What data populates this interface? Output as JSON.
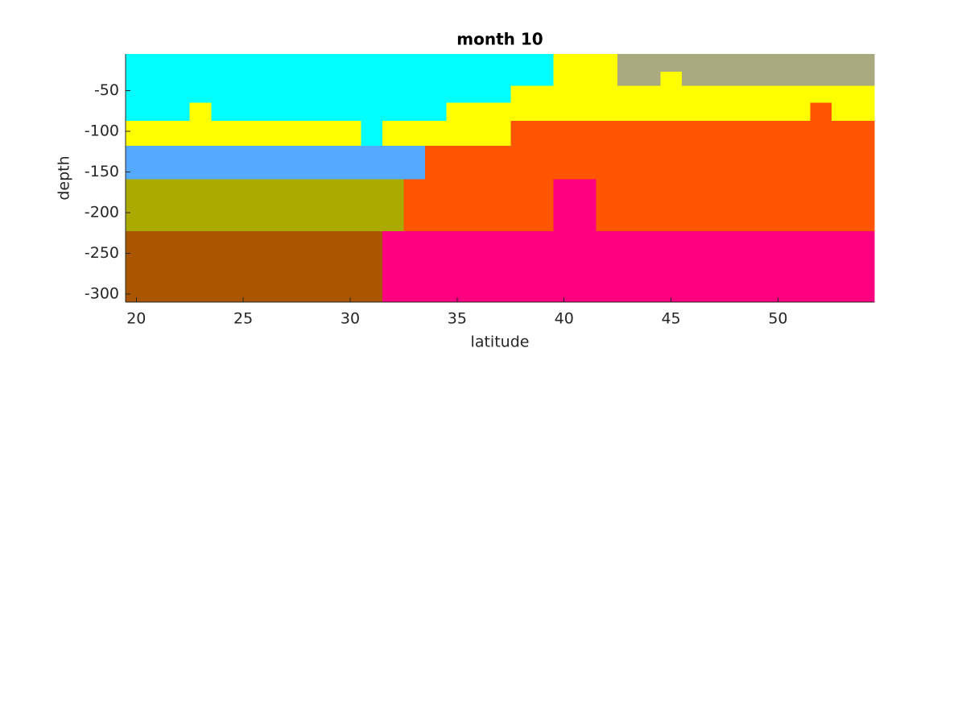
{
  "chart_data": {
    "type": "heatmap",
    "title": "month 10",
    "xlabel": "latitude",
    "ylabel": "depth",
    "x": [
      20,
      21,
      22,
      23,
      24,
      25,
      26,
      27,
      28,
      29,
      30,
      31,
      32,
      33,
      34,
      35,
      36,
      37,
      38,
      39,
      40,
      41,
      42,
      43,
      44,
      45,
      46,
      47,
      48,
      49,
      50,
      51,
      52,
      53,
      54
    ],
    "y_edges": [
      -5,
      -27,
      -44,
      -65,
      -87,
      -118,
      -159,
      -223,
      -310
    ],
    "colors": [
      "#00ffff",
      "#ffff00",
      "#aaaa80",
      "#ff5500",
      "#55aaff",
      "#aaaa00",
      "#aa5500",
      "#ff0080"
    ],
    "z": [
      [
        0,
        0,
        0,
        0,
        0,
        0,
        0,
        0,
        0,
        0,
        0,
        0,
        0,
        0,
        0,
        0,
        0,
        0,
        0,
        0,
        1,
        1,
        1,
        2,
        2,
        2,
        2,
        2,
        2,
        2,
        2,
        2,
        2,
        2,
        2
      ],
      [
        0,
        0,
        0,
        0,
        0,
        0,
        0,
        0,
        0,
        0,
        0,
        0,
        0,
        0,
        0,
        0,
        0,
        0,
        0,
        0,
        1,
        1,
        1,
        2,
        2,
        1,
        2,
        2,
        2,
        2,
        2,
        2,
        2,
        2,
        2
      ],
      [
        0,
        0,
        0,
        0,
        0,
        0,
        0,
        0,
        0,
        0,
        0,
        0,
        0,
        0,
        0,
        0,
        0,
        0,
        1,
        1,
        1,
        1,
        1,
        1,
        1,
        1,
        1,
        1,
        1,
        1,
        1,
        1,
        1,
        1,
        1
      ],
      [
        0,
        0,
        0,
        1,
        0,
        0,
        0,
        0,
        0,
        0,
        0,
        0,
        0,
        0,
        0,
        1,
        1,
        1,
        1,
        1,
        1,
        1,
        1,
        1,
        1,
        1,
        1,
        1,
        1,
        1,
        1,
        1,
        3,
        1,
        1
      ],
      [
        1,
        1,
        1,
        1,
        1,
        1,
        1,
        1,
        1,
        1,
        1,
        0,
        1,
        1,
        1,
        1,
        1,
        1,
        3,
        3,
        3,
        3,
        3,
        3,
        3,
        3,
        3,
        3,
        3,
        3,
        3,
        3,
        3,
        3,
        3
      ],
      [
        4,
        4,
        4,
        4,
        4,
        4,
        4,
        4,
        4,
        4,
        4,
        4,
        4,
        4,
        3,
        3,
        3,
        3,
        3,
        3,
        3,
        3,
        3,
        3,
        3,
        3,
        3,
        3,
        3,
        3,
        3,
        3,
        3,
        3,
        3
      ],
      [
        5,
        5,
        5,
        5,
        5,
        5,
        5,
        5,
        5,
        5,
        5,
        5,
        5,
        3,
        3,
        3,
        3,
        3,
        3,
        3,
        7,
        7,
        3,
        3,
        3,
        3,
        3,
        3,
        3,
        3,
        3,
        3,
        3,
        3,
        3
      ],
      [
        6,
        6,
        6,
        6,
        6,
        6,
        6,
        6,
        6,
        6,
        6,
        6,
        7,
        7,
        7,
        7,
        7,
        7,
        7,
        7,
        7,
        7,
        7,
        7,
        7,
        7,
        7,
        7,
        7,
        7,
        7,
        7,
        7,
        7,
        7
      ]
    ],
    "xlim": [
      19.5,
      54.5
    ],
    "ylim": [
      -310,
      -5
    ],
    "xticks": [
      20,
      25,
      30,
      35,
      40,
      45,
      50
    ],
    "yticks": [
      -300,
      -250,
      -200,
      -150,
      -100,
      -50
    ]
  }
}
